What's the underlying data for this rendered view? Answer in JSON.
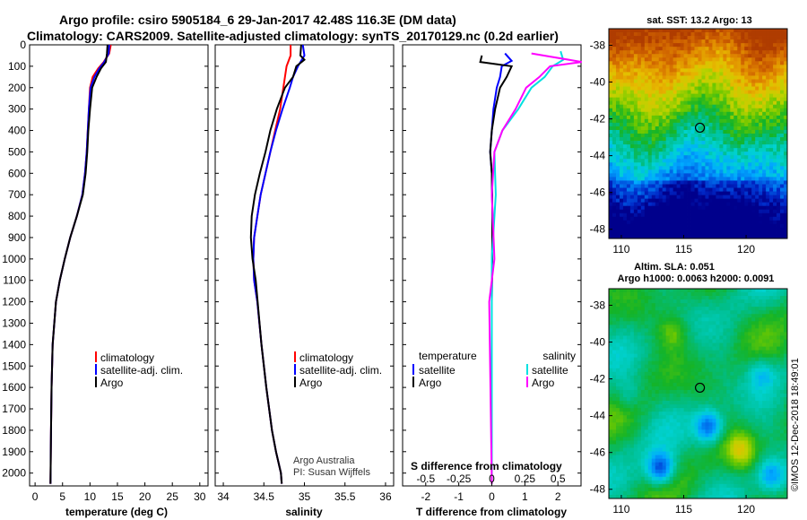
{
  "title": {
    "line1": "Argo profile: csiro 5905184_6 29-Jan-2017 42.48S 116.3E (DM data)",
    "line2": "Climatology: CARS2009. Satellite-adjusted climatology: synTS_20170129.nc (0.2d earlier)"
  },
  "depth_ticks": [
    0,
    100,
    200,
    300,
    400,
    500,
    600,
    700,
    800,
    900,
    1000,
    1100,
    1200,
    1300,
    1400,
    1500,
    1600,
    1700,
    1800,
    1900,
    2000
  ],
  "panels": {
    "temperature": {
      "xlabel": "temperature (deg C)",
      "xticks": [
        0,
        5,
        10,
        15,
        20,
        25,
        30
      ],
      "legend": [
        "climatology",
        "satellite-adj. clim.",
        "Argo"
      ]
    },
    "salinity": {
      "xlabel": "salinity",
      "xticks": [
        "34",
        "34.5",
        "35",
        "35.5",
        "36"
      ],
      "legend": [
        "climatology",
        "satellite-adj. clim.",
        "Argo"
      ],
      "credit1": "Argo Australia",
      "credit2": "PI: Susan Wijffels"
    },
    "difference": {
      "xlabel": "T difference from climatology",
      "xticks": [
        "-2",
        "-1",
        "0",
        "1",
        "2"
      ],
      "s_label": "S difference from climatology",
      "s_ticks": [
        "-0.5",
        "-0.25",
        "0",
        "0.25",
        "0.5"
      ],
      "legend_t_head": "temperature",
      "legend_s_head": "salinity",
      "legend_t": [
        "satellite",
        "Argo"
      ],
      "legend_s": [
        "satellite",
        "Argo"
      ]
    }
  },
  "maps": {
    "sst": {
      "title": "sat. SST: 13.2 Argo: 13",
      "lat_ticks": [
        "-38",
        "-40",
        "-42",
        "-44",
        "-46",
        "-48"
      ],
      "lon_ticks": [
        "110",
        "115",
        "120"
      ]
    },
    "sla": {
      "title1": "Altim. SLA: 0.051",
      "title2": "Argo h1000: 0.0063 h2000: 0.0091",
      "lat_ticks": [
        "-38",
        "-40",
        "-42",
        "-44",
        "-46",
        "-48"
      ],
      "lon_ticks": [
        "110",
        "115",
        "120"
      ]
    },
    "float_position": {
      "lon": 116.3,
      "lat": -42.48
    }
  },
  "watermark": "©IMOS 12-Dec-2018 18:49:01",
  "colors": {
    "climatology": "#ff0000",
    "satellite": "#0000ff",
    "argo": "#000000",
    "sat_salinity": "#00e0e0",
    "argo_salinity": "#ff00ff"
  },
  "chart_data": [
    {
      "type": "line",
      "xlabel": "temperature (deg C)",
      "ylabel": "",
      "xlim": [
        -1,
        31.5
      ],
      "ylim": [
        2060,
        0
      ],
      "series": [
        {
          "name": "climatology",
          "x": [
            13.8,
            13.5,
            12.5,
            11.5,
            10.5,
            10.0,
            9.8,
            9.6,
            9.4,
            9.1,
            8.6,
            7.6,
            6.4,
            5.4,
            4.5,
            3.8,
            3.2,
            3.0,
            2.9,
            2.8
          ],
          "y": [
            0,
            40,
            80,
            110,
            150,
            200,
            300,
            400,
            500,
            600,
            700,
            800,
            900,
            1000,
            1100,
            1200,
            1400,
            1600,
            1800,
            2050
          ]
        },
        {
          "name": "satellite-adj. clim.",
          "x": [
            13.5,
            13.4,
            12.6,
            11.7,
            10.8,
            10.1,
            9.8,
            9.6,
            9.4,
            9.1,
            8.6,
            7.6,
            6.4,
            5.4,
            4.5,
            3.8,
            3.2,
            3.0,
            2.9,
            2.8
          ],
          "y": [
            0,
            40,
            80,
            110,
            150,
            200,
            300,
            400,
            500,
            600,
            700,
            800,
            900,
            1000,
            1100,
            1200,
            1400,
            1600,
            1800,
            2050
          ]
        },
        {
          "name": "Argo",
          "x": [
            13.2,
            13.1,
            12.9,
            12.0,
            11.2,
            10.4,
            10.0,
            9.7,
            9.5,
            9.2,
            8.7,
            7.6,
            6.4,
            5.4,
            4.5,
            3.8,
            3.2,
            3.0,
            2.9,
            2.8
          ],
          "y": [
            0,
            40,
            80,
            110,
            150,
            200,
            300,
            400,
            500,
            600,
            700,
            800,
            900,
            1000,
            1100,
            1200,
            1400,
            1600,
            1800,
            2050
          ]
        }
      ]
    },
    {
      "type": "line",
      "xlabel": "salinity",
      "ylabel": "",
      "xlim": [
        33.9,
        36.1
      ],
      "ylim": [
        2060,
        0
      ],
      "series": [
        {
          "name": "climatology",
          "x": [
            34.83,
            34.83,
            34.78,
            34.76,
            34.74,
            34.7,
            34.64,
            34.58,
            34.52,
            34.46,
            34.42,
            34.38,
            34.37,
            34.38,
            34.42,
            34.47,
            34.53,
            34.6,
            34.65,
            34.71,
            34.72
          ],
          "y": [
            0,
            50,
            100,
            150,
            200,
            300,
            400,
            500,
            600,
            700,
            800,
            900,
            1000,
            1100,
            1200,
            1400,
            1600,
            1800,
            1900,
            2000,
            2050
          ]
        },
        {
          "name": "satellite-adj. clim.",
          "x": [
            34.98,
            35.0,
            34.92,
            34.86,
            34.82,
            34.73,
            34.65,
            34.58,
            34.52,
            34.46,
            34.42,
            34.38,
            34.37,
            34.38,
            34.42,
            34.47,
            34.53,
            34.6,
            34.65,
            34.71,
            34.72
          ],
          "y": [
            0,
            50,
            100,
            150,
            200,
            300,
            400,
            500,
            600,
            700,
            800,
            900,
            1000,
            1100,
            1200,
            1400,
            1600,
            1800,
            1900,
            2000,
            2050
          ]
        },
        {
          "name": "Argo",
          "x": [
            34.96,
            34.95,
            35.0,
            34.9,
            34.86,
            34.76,
            34.66,
            34.58,
            34.52,
            34.45,
            34.39,
            34.35,
            34.34,
            34.36,
            34.4,
            34.47,
            34.53,
            34.6,
            34.65,
            34.71,
            34.72
          ],
          "y": [
            0,
            50,
            70,
            100,
            150,
            200,
            300,
            400,
            500,
            600,
            700,
            800,
            900,
            1000,
            1100,
            1400,
            1600,
            1800,
            1900,
            2000,
            2050
          ]
        }
      ]
    },
    {
      "type": "line",
      "xlabel": "T difference from climatology",
      "ylabel": "",
      "xlim": [
        -2.7,
        2.7
      ],
      "ylim": [
        2060,
        0
      ],
      "series": [
        {
          "name": "temperature satellite",
          "x": [
            0.4,
            0.6,
            0.3,
            0.25,
            0.15,
            0.05,
            0.0,
            -0.05,
            0.0,
            0.02,
            0.0,
            0.0
          ],
          "y": [
            40,
            75,
            100,
            150,
            200,
            300,
            400,
            500,
            600,
            800,
            1200,
            2050
          ]
        },
        {
          "name": "temperature Argo",
          "x": [
            -0.3,
            -0.35,
            0.6,
            0.45,
            0.25,
            0.1,
            0.0,
            -0.05,
            0.0,
            0.02,
            0.0,
            0.0
          ],
          "y": [
            50,
            80,
            100,
            150,
            200,
            300,
            400,
            500,
            600,
            800,
            1200,
            2050
          ]
        },
        {
          "name": "salinity satellite",
          "x": [
            0.52,
            0.54,
            0.46,
            0.4,
            0.3,
            0.2,
            0.08,
            0.02,
            0.03,
            0.0,
            0.0
          ],
          "y": [
            30,
            70,
            100,
            150,
            200,
            300,
            400,
            500,
            700,
            1000,
            2050
          ]
        },
        {
          "name": "salinity Argo",
          "x": [
            0.3,
            0.68,
            0.44,
            0.36,
            0.26,
            0.18,
            0.08,
            0.02,
            0.0,
            0.02,
            -0.02,
            0.0
          ],
          "y": [
            40,
            80,
            100,
            150,
            200,
            300,
            400,
            500,
            700,
            1000,
            1200,
            2050
          ]
        }
      ]
    }
  ]
}
